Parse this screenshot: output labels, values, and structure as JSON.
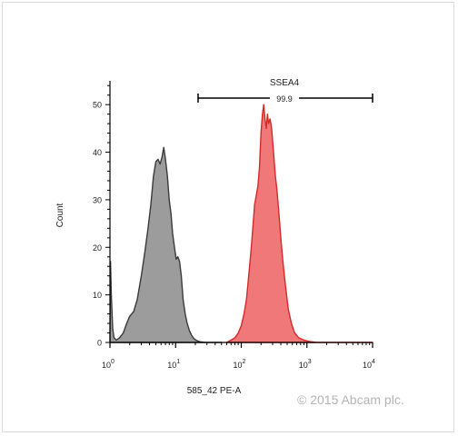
{
  "chart_data": {
    "type": "area",
    "x_scale": "log",
    "xlim": [
      1,
      10000
    ],
    "ylim": [
      0,
      55
    ],
    "xlabel": "585_42 PE-A",
    "ylabel": "Count",
    "x_ticks": [
      {
        "value": 1,
        "base": "10",
        "exp": "0"
      },
      {
        "value": 10,
        "base": "10",
        "exp": "1"
      },
      {
        "value": 100,
        "base": "10",
        "exp": "2"
      },
      {
        "value": 1000,
        "base": "10",
        "exp": "3"
      },
      {
        "value": 10000,
        "base": "10",
        "exp": "4"
      }
    ],
    "y_ticks": [
      "0",
      "10",
      "20",
      "30",
      "40",
      "50"
    ],
    "grid": false,
    "series": [
      {
        "color": "#9c9c9c",
        "stroke": "#3a3a3a",
        "x": [
          1.0,
          1.02,
          1.05,
          1.1,
          1.15,
          1.25,
          1.4,
          1.6,
          1.8,
          2.0,
          2.3,
          2.6,
          3.0,
          3.4,
          3.8,
          4.2,
          4.6,
          5.0,
          5.4,
          5.8,
          6.2,
          6.6,
          7.0,
          7.5,
          8.0,
          8.5,
          9.0,
          9.6,
          10.2,
          10.8,
          11.5,
          12.2,
          13.0,
          14.0,
          15.0,
          16.2,
          17.5,
          19,
          21,
          23,
          25,
          28,
          32,
          36,
          40,
          45,
          50
        ],
        "y": [
          0,
          17,
          10,
          3,
          1,
          0.5,
          1,
          2,
          4,
          5.5,
          6.5,
          9,
          14,
          19,
          24,
          29,
          35,
          38,
          38.5,
          37.5,
          39,
          41,
          38.5,
          35,
          30,
          27,
          23,
          20,
          17.5,
          18,
          17,
          14,
          9,
          6,
          4,
          2.5,
          1.5,
          0.8,
          0.4,
          0.2,
          0.1,
          0,
          0,
          0,
          0,
          0,
          0
        ]
      },
      {
        "color": "#f07878",
        "stroke": "#d42a2a",
        "x": [
          60,
          70,
          80,
          90,
          100,
          110,
          120,
          130,
          140,
          150,
          160,
          170,
          180,
          190,
          200,
          210,
          220,
          230,
          240,
          250,
          260,
          275,
          290,
          310,
          330,
          350,
          375,
          400,
          430,
          470,
          520,
          580,
          650,
          750,
          900,
          1100,
          1400,
          1800,
          2500,
          4000,
          10000
        ],
        "y": [
          0,
          0.5,
          1,
          2,
          3.5,
          6,
          9,
          14,
          19,
          24,
          29,
          31,
          33,
          37,
          44,
          48,
          50,
          47,
          45,
          48,
          46,
          47,
          45,
          40,
          35,
          32,
          27,
          22,
          17,
          12,
          7,
          4,
          2,
          1,
          0.5,
          0.2,
          0,
          0,
          0,
          0,
          0
        ]
      }
    ],
    "gate": {
      "label": "SSEA4",
      "percent": "99.9",
      "x_start": 22,
      "x_end": 10000,
      "y": 51
    }
  },
  "copyright": "© 2015 Abcam plc."
}
